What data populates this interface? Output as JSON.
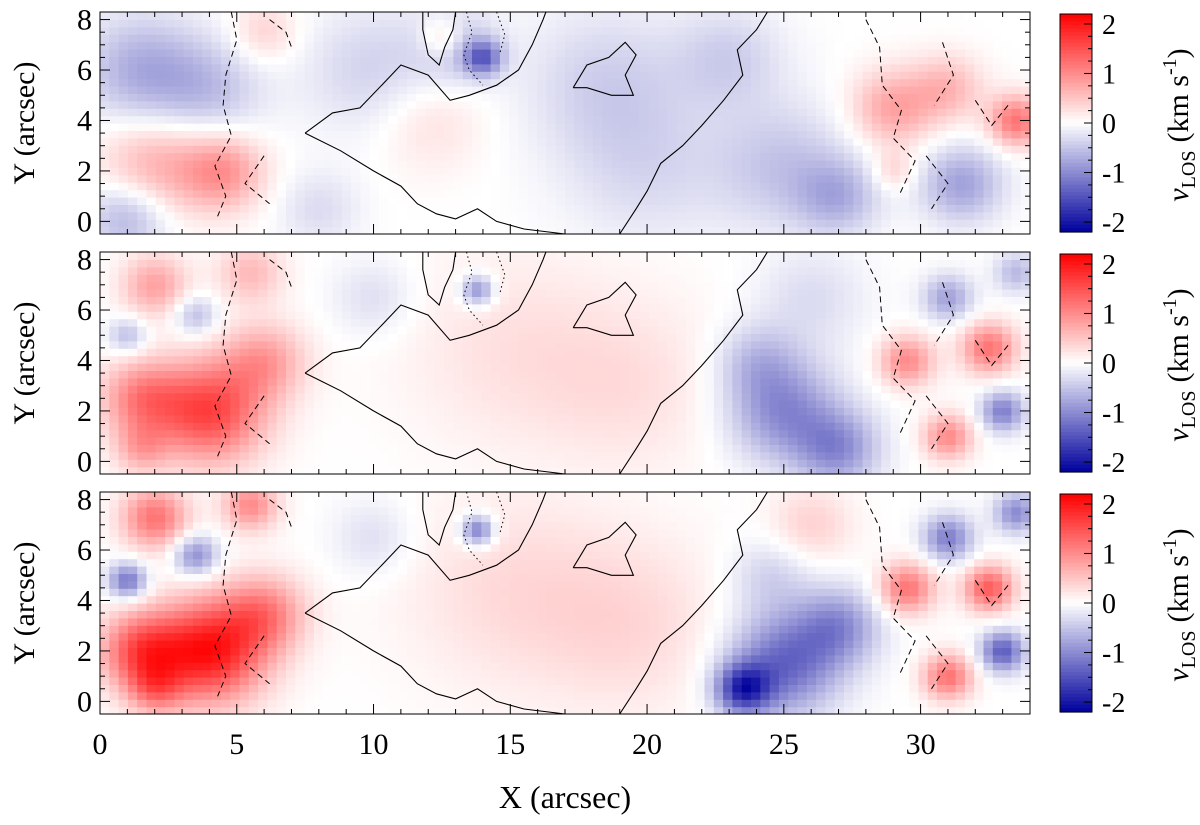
{
  "figure": {
    "xlabel": "X (arcsec)",
    "ylabel": "Y (arcsec)",
    "colorbar_label": "v",
    "colorbar_label_sub": "LOS",
    "colorbar_label_units": "(km s",
    "colorbar_label_sup": "-1",
    "colorbar_label_close": ")"
  },
  "colors": {
    "min": "#00009c",
    "mid": "#ffffff",
    "max": "#ff0000"
  },
  "chart_data": [
    {
      "type": "heatmap",
      "panel": "top",
      "xlabel": "",
      "ylabel": "Y (arcsec)",
      "xlim": [
        0,
        34
      ],
      "ylim": [
        -0.5,
        8.3
      ],
      "xticks": [
        0,
        5,
        10,
        15,
        20,
        25,
        30
      ],
      "yticks": [
        0,
        2,
        4,
        6,
        8
      ],
      "colorbar": {
        "label": "vLOS (km s-1)",
        "range": [
          -2.2,
          2.2
        ],
        "ticks": [
          2,
          1,
          0,
          -1,
          -2
        ]
      },
      "blobs": [
        {
          "x": 1.5,
          "y": 6.0,
          "v": -0.7,
          "r": 2.2
        },
        {
          "x": 4.0,
          "y": 5.2,
          "v": -0.5,
          "r": 2.0
        },
        {
          "x": 2.0,
          "y": 2.2,
          "v": 0.7,
          "r": 2.0
        },
        {
          "x": 4.5,
          "y": 2.0,
          "v": 0.9,
          "r": 1.5
        },
        {
          "x": 1.0,
          "y": 0.2,
          "v": -0.7,
          "r": 1.5
        },
        {
          "x": 6.0,
          "y": 7.5,
          "v": 0.4,
          "r": 1.2
        },
        {
          "x": 10.0,
          "y": 6.0,
          "v": -0.4,
          "r": 2.5
        },
        {
          "x": 13.0,
          "y": 7.0,
          "v": -0.5,
          "r": 1.5
        },
        {
          "x": 12.5,
          "y": 7.3,
          "v": 0.6,
          "r": 0.8
        },
        {
          "x": 14.0,
          "y": 6.5,
          "v": -1.2,
          "r": 0.7
        },
        {
          "x": 12.0,
          "y": 4.0,
          "v": 0.3,
          "r": 2.0
        },
        {
          "x": 18.5,
          "y": 5.5,
          "v": -0.4,
          "r": 3.0
        },
        {
          "x": 20.0,
          "y": 2.0,
          "v": -0.3,
          "r": 3.0
        },
        {
          "x": 25.0,
          "y": 2.2,
          "v": -0.5,
          "r": 2.5
        },
        {
          "x": 23.0,
          "y": 6.5,
          "v": -0.4,
          "r": 2.0
        },
        {
          "x": 29.0,
          "y": 4.5,
          "v": 0.8,
          "r": 1.5
        },
        {
          "x": 31.0,
          "y": 5.3,
          "v": 0.6,
          "r": 1.3
        },
        {
          "x": 33.5,
          "y": 4.0,
          "v": 1.2,
          "r": 1.0
        },
        {
          "x": 31.5,
          "y": 1.5,
          "v": -0.8,
          "r": 1.5
        },
        {
          "x": 27.0,
          "y": 1.0,
          "v": -0.6,
          "r": 1.5
        },
        {
          "x": 29.0,
          "y": 2.0,
          "v": 0.4,
          "r": 0.8
        },
        {
          "x": 8.0,
          "y": 0.5,
          "v": -0.3,
          "r": 1.5
        }
      ]
    },
    {
      "type": "heatmap",
      "panel": "middle",
      "xlabel": "",
      "ylabel": "Y (arcsec)",
      "xlim": [
        0,
        34
      ],
      "ylim": [
        -0.5,
        8.3
      ],
      "xticks": [
        0,
        5,
        10,
        15,
        20,
        25,
        30
      ],
      "yticks": [
        0,
        2,
        4,
        6,
        8
      ],
      "colorbar": {
        "label": "vLOS (km s-1)",
        "range": [
          -2.2,
          2.2
        ],
        "ticks": [
          2,
          1,
          0,
          -1,
          -2
        ]
      },
      "blobs": [
        {
          "x": 4.0,
          "y": 2.0,
          "v": 1.6,
          "r": 2.0
        },
        {
          "x": 1.5,
          "y": 2.5,
          "v": 1.0,
          "r": 1.5
        },
        {
          "x": 6.0,
          "y": 4.0,
          "v": 0.8,
          "r": 1.5
        },
        {
          "x": 2.0,
          "y": 7.0,
          "v": 0.8,
          "r": 1.2
        },
        {
          "x": 5.5,
          "y": 7.5,
          "v": 0.6,
          "r": 1.2
        },
        {
          "x": 1.0,
          "y": 5.0,
          "v": -0.6,
          "r": 0.7
        },
        {
          "x": 3.5,
          "y": 5.8,
          "v": -0.6,
          "r": 0.8
        },
        {
          "x": 1.5,
          "y": 0.5,
          "v": 0.6,
          "r": 1.0
        },
        {
          "x": 15.0,
          "y": 4.5,
          "v": 0.25,
          "r": 4.0
        },
        {
          "x": 19.5,
          "y": 3.0,
          "v": 0.25,
          "r": 3.5
        },
        {
          "x": 10.0,
          "y": 6.5,
          "v": -0.3,
          "r": 1.5
        },
        {
          "x": 13.8,
          "y": 6.8,
          "v": -1.0,
          "r": 0.6
        },
        {
          "x": 25.0,
          "y": 2.0,
          "v": -1.0,
          "r": 2.0
        },
        {
          "x": 27.0,
          "y": 0.5,
          "v": -0.9,
          "r": 1.5
        },
        {
          "x": 24.0,
          "y": 4.0,
          "v": -0.5,
          "r": 1.5
        },
        {
          "x": 26.0,
          "y": 6.5,
          "v": -0.3,
          "r": 2.0
        },
        {
          "x": 29.5,
          "y": 4.0,
          "v": 1.0,
          "r": 1.0
        },
        {
          "x": 32.5,
          "y": 4.5,
          "v": 1.2,
          "r": 1.0
        },
        {
          "x": 31.0,
          "y": 1.0,
          "v": 1.0,
          "r": 0.9
        },
        {
          "x": 33.0,
          "y": 2.0,
          "v": -1.1,
          "r": 0.8
        },
        {
          "x": 31.0,
          "y": 6.5,
          "v": -0.8,
          "r": 0.9
        },
        {
          "x": 33.5,
          "y": 7.5,
          "v": -0.6,
          "r": 0.8
        }
      ]
    },
    {
      "type": "heatmap",
      "panel": "bottom",
      "xlabel": "X (arcsec)",
      "ylabel": "Y (arcsec)",
      "xlim": [
        0,
        34
      ],
      "ylim": [
        -0.5,
        8.3
      ],
      "xticks": [
        0,
        5,
        10,
        15,
        20,
        25,
        30
      ],
      "yticks": [
        0,
        2,
        4,
        6,
        8
      ],
      "colorbar": {
        "label": "vLOS (km s-1)",
        "range": [
          -2.2,
          2.2
        ],
        "ticks": [
          2,
          1,
          0,
          -1,
          -2
        ]
      },
      "blobs": [
        {
          "x": 4.0,
          "y": 2.0,
          "v": 2.0,
          "r": 2.0
        },
        {
          "x": 1.5,
          "y": 2.0,
          "v": 1.4,
          "r": 1.5
        },
        {
          "x": 6.0,
          "y": 3.5,
          "v": 1.0,
          "r": 1.5
        },
        {
          "x": 2.0,
          "y": 7.3,
          "v": 1.2,
          "r": 1.2
        },
        {
          "x": 5.5,
          "y": 7.8,
          "v": 1.0,
          "r": 1.0
        },
        {
          "x": 1.0,
          "y": 4.8,
          "v": -1.2,
          "r": 0.7
        },
        {
          "x": 3.5,
          "y": 5.8,
          "v": -1.0,
          "r": 0.8
        },
        {
          "x": 2.0,
          "y": 0.5,
          "v": 0.8,
          "r": 1.0
        },
        {
          "x": 15.0,
          "y": 4.5,
          "v": 0.3,
          "r": 4.0
        },
        {
          "x": 19.5,
          "y": 3.0,
          "v": 0.3,
          "r": 3.5
        },
        {
          "x": 10.0,
          "y": 6.5,
          "v": -0.3,
          "r": 1.5
        },
        {
          "x": 13.8,
          "y": 6.8,
          "v": -1.2,
          "r": 0.6
        },
        {
          "x": 25.0,
          "y": 1.5,
          "v": -1.3,
          "r": 2.0
        },
        {
          "x": 23.5,
          "y": 0.5,
          "v": -1.6,
          "r": 1.0
        },
        {
          "x": 27.0,
          "y": 3.0,
          "v": -0.9,
          "r": 1.5
        },
        {
          "x": 24.5,
          "y": 5.0,
          "v": -0.4,
          "r": 1.5
        },
        {
          "x": 26.0,
          "y": 7.0,
          "v": 0.4,
          "r": 1.5
        },
        {
          "x": 29.5,
          "y": 4.5,
          "v": 1.2,
          "r": 1.0
        },
        {
          "x": 32.5,
          "y": 4.5,
          "v": 1.4,
          "r": 0.9
        },
        {
          "x": 31.0,
          "y": 1.0,
          "v": 1.2,
          "r": 0.9
        },
        {
          "x": 33.0,
          "y": 2.0,
          "v": -1.4,
          "r": 0.8
        },
        {
          "x": 31.0,
          "y": 6.5,
          "v": -1.1,
          "r": 0.9
        },
        {
          "x": 33.5,
          "y": 7.5,
          "v": -1.0,
          "r": 0.8
        }
      ]
    }
  ]
}
